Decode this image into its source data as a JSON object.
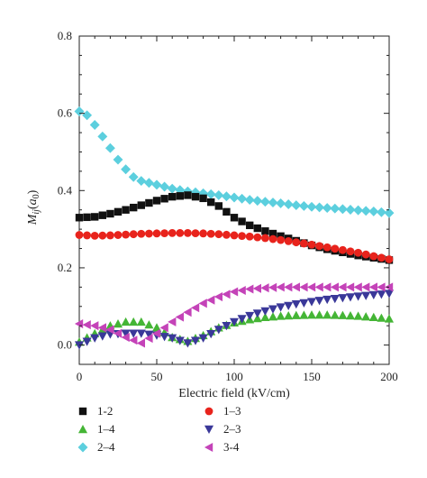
{
  "chart_data": {
    "type": "scatter",
    "title": "",
    "xlabel": "Electric field (kV/cm)",
    "ylabel_main": "M",
    "ylabel_sub": "ij",
    "ylabel_paren_open": "(",
    "ylabel_unit_main": "a",
    "ylabel_unit_sub": "0",
    "ylabel_paren_close": ")",
    "xlim": [
      0,
      200
    ],
    "ylim": [
      -0.05,
      0.8
    ],
    "x_ticks": [
      0,
      50,
      100,
      150,
      200
    ],
    "x_tick_labels": [
      "0",
      "50",
      "100",
      "150",
      "200"
    ],
    "y_ticks": [
      0.0,
      0.2,
      0.4,
      0.6,
      0.8
    ],
    "y_tick_labels": [
      "0.0",
      "0.2",
      "0.4",
      "0.6",
      "0.8"
    ],
    "grid": false,
    "legend_position": "bottom",
    "series": [
      {
        "name": "1-2",
        "marker": "square",
        "color": "#111111",
        "x": [
          0,
          10,
          20,
          30,
          40,
          50,
          60,
          70,
          80,
          90,
          100,
          110,
          120,
          130,
          140,
          150,
          160,
          170,
          180,
          190,
          200
        ],
        "y": [
          0.33,
          0.332,
          0.34,
          0.35,
          0.362,
          0.374,
          0.384,
          0.388,
          0.38,
          0.36,
          0.33,
          0.31,
          0.295,
          0.282,
          0.27,
          0.258,
          0.248,
          0.24,
          0.232,
          0.226,
          0.22
        ]
      },
      {
        "name": "1–3",
        "marker": "circle",
        "color": "#e8231c",
        "x": [
          0,
          10,
          20,
          30,
          40,
          50,
          60,
          70,
          80,
          90,
          100,
          110,
          120,
          130,
          140,
          150,
          160,
          170,
          180,
          190,
          200
        ],
        "y": [
          0.285,
          0.283,
          0.284,
          0.286,
          0.288,
          0.289,
          0.29,
          0.29,
          0.289,
          0.287,
          0.284,
          0.281,
          0.277,
          0.272,
          0.266,
          0.26,
          0.253,
          0.246,
          0.239,
          0.23,
          0.222
        ]
      },
      {
        "name": "1–4",
        "marker": "triangle-up",
        "color": "#44b535",
        "x": [
          0,
          10,
          20,
          30,
          40,
          50,
          60,
          70,
          80,
          90,
          100,
          110,
          120,
          130,
          140,
          150,
          160,
          170,
          180,
          190,
          200
        ],
        "y": [
          0.008,
          0.03,
          0.05,
          0.06,
          0.06,
          0.045,
          0.02,
          0.01,
          0.025,
          0.045,
          0.058,
          0.066,
          0.072,
          0.075,
          0.077,
          0.078,
          0.078,
          0.077,
          0.075,
          0.072,
          0.068
        ]
      },
      {
        "name": "2–3",
        "marker": "triangle-down",
        "color": "#3a3899",
        "x": [
          0,
          10,
          20,
          30,
          40,
          50,
          60,
          70,
          80,
          90,
          100,
          110,
          120,
          130,
          140,
          150,
          160,
          170,
          180,
          190,
          200
        ],
        "y": [
          0.0,
          0.018,
          0.028,
          0.03,
          0.03,
          0.025,
          0.018,
          0.005,
          0.018,
          0.04,
          0.06,
          0.076,
          0.088,
          0.098,
          0.106,
          0.112,
          0.118,
          0.122,
          0.126,
          0.13,
          0.133
        ]
      },
      {
        "name": "2–4",
        "marker": "diamond",
        "color": "#5ccfde",
        "x": [
          0,
          5,
          10,
          15,
          20,
          25,
          30,
          35,
          40,
          50,
          60,
          70,
          80,
          90,
          100,
          110,
          120,
          130,
          140,
          150,
          160,
          170,
          180,
          190,
          200
        ],
        "y": [
          0.605,
          0.595,
          0.57,
          0.54,
          0.51,
          0.48,
          0.455,
          0.435,
          0.425,
          0.415,
          0.405,
          0.398,
          0.393,
          0.388,
          0.382,
          0.376,
          0.371,
          0.367,
          0.362,
          0.358,
          0.355,
          0.352,
          0.349,
          0.346,
          0.342
        ]
      },
      {
        "name": "3-4",
        "marker": "triangle-left",
        "color": "#c443b8",
        "x": [
          0,
          10,
          20,
          30,
          40,
          50,
          60,
          70,
          80,
          90,
          100,
          110,
          120,
          130,
          140,
          150,
          160,
          170,
          180,
          190,
          200
        ],
        "y": [
          0.055,
          0.05,
          0.04,
          0.02,
          0.005,
          0.03,
          0.06,
          0.085,
          0.108,
          0.125,
          0.138,
          0.145,
          0.148,
          0.15,
          0.15,
          0.15,
          0.15,
          0.15,
          0.15,
          0.15,
          0.15
        ]
      }
    ]
  }
}
